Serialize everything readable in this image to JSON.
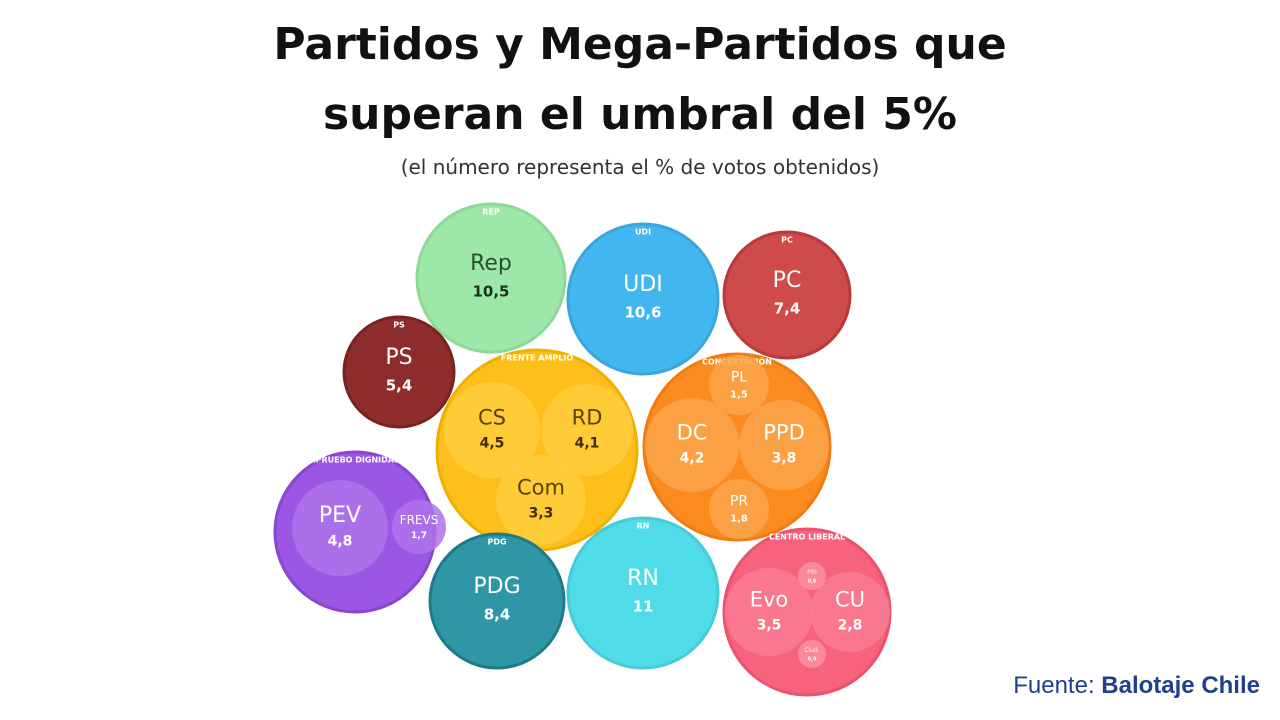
{
  "title_line1": "Partidos y Mega-Partidos que",
  "title_line2": "superan el umbral del 5%",
  "subtitle": "(el número representa el % de votos obtenidos)",
  "source_label": "Fuente:",
  "source_name": "Balotaje Chile",
  "chart_data": {
    "type": "bubble",
    "title": "Partidos y Mega-Partidos que superan el umbral del 5%",
    "subtitle": "(el número representa el % de votos obtenidos)",
    "groups": [
      {
        "id": "rep",
        "label": "REP",
        "color": "#9de8a8",
        "stroke": "#8fd89a",
        "parties": [
          {
            "name": "Rep",
            "value": "10,5",
            "color": "#9de8a8"
          }
        ]
      },
      {
        "id": "udi",
        "label": "UDI",
        "color": "#42b6ef",
        "stroke": "#3aa6dc",
        "parties": [
          {
            "name": "UDI",
            "value": "10,6",
            "color": "#42b6ef"
          }
        ]
      },
      {
        "id": "pc",
        "label": "PC",
        "color": "#cf4a4a",
        "stroke": "#b83a3a",
        "parties": [
          {
            "name": "PC",
            "value": "7,4",
            "color": "#cf4a4a"
          }
        ]
      },
      {
        "id": "ps",
        "label": "PS",
        "color": "#8e2c2c",
        "stroke": "#7a2222",
        "parties": [
          {
            "name": "PS",
            "value": "5,4",
            "color": "#8e2c2c"
          }
        ]
      },
      {
        "id": "fa",
        "label": "FRENTE AMPLIO",
        "color": "#ffbf1a",
        "stroke": "#f0b000",
        "parties": [
          {
            "name": "CS",
            "value": "4,5",
            "color": "#ffcc3d"
          },
          {
            "name": "RD",
            "value": "4,1",
            "color": "#ffcc3d"
          },
          {
            "name": "Com",
            "value": "3,3",
            "color": "#ffcc3d"
          }
        ]
      },
      {
        "id": "conc",
        "label": "CONCERTACIÓN",
        "color": "#fb8b1e",
        "stroke": "#f07c10",
        "parties": [
          {
            "name": "PL",
            "value": "1,5",
            "color": "#fca44a"
          },
          {
            "name": "DC",
            "value": "4,2",
            "color": "#fca44a"
          },
          {
            "name": "PPD",
            "value": "3,8",
            "color": "#fca44a"
          },
          {
            "name": "PR",
            "value": "1,8",
            "color": "#fca44a"
          }
        ]
      },
      {
        "id": "ad",
        "label": "APRUEBO DIGNIDAD",
        "color": "#9b56e3",
        "stroke": "#8a46d2",
        "parties": [
          {
            "name": "PEV",
            "value": "4,8",
            "color": "#ae73ea"
          },
          {
            "name": "FREVS",
            "value": "1,7",
            "color": "#ae73ea"
          }
        ]
      },
      {
        "id": "pdg",
        "label": "PDG",
        "color": "#2f96a6",
        "stroke": "#1f7a88",
        "parties": [
          {
            "name": "PDG",
            "value": "8,4",
            "color": "#2f96a6"
          }
        ]
      },
      {
        "id": "rn",
        "label": "RN",
        "color": "#4fdce8",
        "stroke": "#45ccd8",
        "parties": [
          {
            "name": "RN",
            "value": "11",
            "color": "#4fdce8"
          }
        ]
      },
      {
        "id": "cl",
        "label": "CENTRO LIBERAL",
        "color": "#f7627c",
        "stroke": "#ec5270",
        "parties": [
          {
            "name": "Evo",
            "value": "3,5",
            "color": "#fa7d93"
          },
          {
            "name": "CU",
            "value": "2,8",
            "color": "#fa7d93"
          },
          {
            "name": "PRI",
            "value": "0,6",
            "color": "#fb8fa2"
          },
          {
            "name": "Ciud.",
            "value": "0,5",
            "color": "#fb8fa2"
          }
        ]
      }
    ]
  }
}
